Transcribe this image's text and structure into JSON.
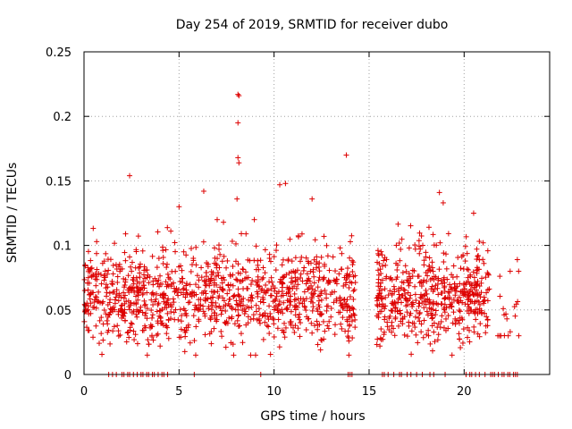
{
  "chart_data": {
    "type": "scatter",
    "title": "Day 254 of 2019, SRMTID for receiver dubo",
    "xlabel": "GPS time / hours",
    "ylabel": "SRMTID / TECUs",
    "xlim": [
      0,
      24.5
    ],
    "ylim": [
      0,
      0.25
    ],
    "xticks": [
      0,
      5,
      10,
      15,
      20
    ],
    "yticks": [
      0,
      0.05,
      0.1,
      0.15,
      0.2,
      0.25
    ],
    "xtick_labels": [
      "0",
      "5",
      "10",
      "15",
      "20"
    ],
    "ytick_labels": [
      "0",
      "0.05",
      "0.1",
      "0.15",
      "0.2",
      "0.25"
    ],
    "grid": true,
    "marker": "+",
    "color": "#dd0000",
    "gap_hours": [
      14.3,
      15.4
    ],
    "outliers": [
      {
        "x": 2.4,
        "y": 0.154
      },
      {
        "x": 5.0,
        "y": 0.13
      },
      {
        "x": 6.3,
        "y": 0.142
      },
      {
        "x": 8.1,
        "y": 0.217
      },
      {
        "x": 8.15,
        "y": 0.216
      },
      {
        "x": 8.1,
        "y": 0.195
      },
      {
        "x": 8.1,
        "y": 0.168
      },
      {
        "x": 8.15,
        "y": 0.164
      },
      {
        "x": 8.05,
        "y": 0.136
      },
      {
        "x": 10.3,
        "y": 0.147
      },
      {
        "x": 10.6,
        "y": 0.148
      },
      {
        "x": 12.0,
        "y": 0.136
      },
      {
        "x": 13.8,
        "y": 0.17
      },
      {
        "x": 18.7,
        "y": 0.141
      },
      {
        "x": 18.9,
        "y": 0.133
      },
      {
        "x": 21.0,
        "y": 0.102
      },
      {
        "x": 22.8,
        "y": 0.089
      }
    ],
    "clusters": [
      {
        "x_start": 0.0,
        "x_end": 14.3,
        "y_min": 0.015,
        "y_max": 0.12,
        "center": 0.06,
        "count": 1100
      },
      {
        "x_start": 15.4,
        "x_end": 21.3,
        "y_min": 0.015,
        "y_max": 0.125,
        "center": 0.06,
        "count": 520
      },
      {
        "x_start": 21.3,
        "x_end": 23.0,
        "y_min": 0.03,
        "y_max": 0.08,
        "center": 0.05,
        "count": 20
      }
    ],
    "zero_points_x": [
      1.3,
      1.5,
      1.7,
      2.0,
      2.1,
      2.3,
      2.4,
      2.6,
      2.8,
      3.0,
      3.1,
      3.3,
      3.4,
      3.6,
      3.7,
      3.9,
      4.1,
      4.2,
      4.4,
      5.8,
      9.3,
      13.9,
      14.0,
      14.1,
      15.7,
      15.8,
      16.0,
      16.3,
      16.6,
      16.7,
      17.0,
      17.2,
      17.5,
      17.8,
      18.2,
      18.4,
      19.0,
      20.1,
      20.3,
      20.4,
      20.6,
      20.8,
      21.1,
      21.4,
      21.5,
      21.6,
      21.8,
      22.0,
      22.1,
      22.3,
      22.4,
      22.6,
      22.7,
      22.8
    ]
  }
}
